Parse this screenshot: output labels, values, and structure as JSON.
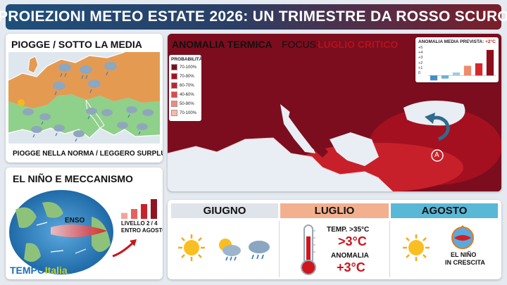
{
  "header": {
    "title": "PROIEZIONI METEO ESTATE 2026: UN TRIMESTRE DA ROSSO SCURO"
  },
  "rain_panel": {
    "title": "PIOGGE / SOTTO LA MEDIA",
    "footer": "PIOGGE NELLA NORMA / LEGGERO SURPLUS",
    "colors": {
      "below": "#e59a52",
      "normal": "#8fd08a"
    }
  },
  "anomaly_panel": {
    "title": "ANOMALIA TERMICA",
    "focus_prefix": "FOCUS:",
    "focus_value": "LUGLIO CRITICO",
    "anticyclone_label": "A",
    "legend": {
      "title": "PROBABILITÀ",
      "items": [
        {
          "label": "70-100%",
          "color": "#7b0d1e"
        },
        {
          "label": "70-90%",
          "color": "#a4101f"
        },
        {
          "label": "60-70%",
          "color": "#c8202a"
        },
        {
          "label": "40-60%",
          "color": "#e2474a"
        },
        {
          "label": "50-90%",
          "color": "#f08a7c"
        },
        {
          "label": "70-100%",
          "color": "#f7b9a8"
        }
      ]
    },
    "inset": {
      "title_prefix": "ANOMALIA MEDIA PREVISTA:",
      "title_value": "+2°C",
      "y_ticks": [
        "+5",
        "+4",
        "+3",
        "+2",
        "+1",
        "0"
      ],
      "chart_data": {
        "type": "bar",
        "values": [
          -0.8,
          -0.5,
          0.5,
          1.6,
          2.0,
          4.2
        ],
        "colors": [
          "#3f8fc8",
          "#6aaedb",
          "#9fcbe6",
          "#f08a6e",
          "#d6282c",
          "#8e0f1b"
        ],
        "ylim": [
          -1,
          5
        ]
      }
    }
  },
  "nino_panel": {
    "title": "EL NIÑO E MECCANISMO",
    "enso_label": "ENSO",
    "level_line1": "LIVELLO 2 / 4",
    "level_line2": "ENTRO AGOSTO",
    "level_bars": [
      0.3,
      0.5,
      0.75,
      1.0
    ]
  },
  "months": {
    "june": {
      "label": "GIUGNO",
      "header_color": "#dfe4ea"
    },
    "july": {
      "label": "LUGLIO",
      "header_color": "#f3b08f",
      "temp_label": "TEMP. >35°C",
      "temp_value": ">3°C",
      "anomaly_label": "ANOMALIA",
      "anomaly_value": "+3°C"
    },
    "august": {
      "label": "AGOSTO",
      "header_color": "#58b8d6",
      "nino_line1": "EL NIÑO",
      "nino_line2": "IN CRESCITA"
    }
  },
  "logo": {
    "part1": "TEMPO",
    "part2": "Italia"
  }
}
